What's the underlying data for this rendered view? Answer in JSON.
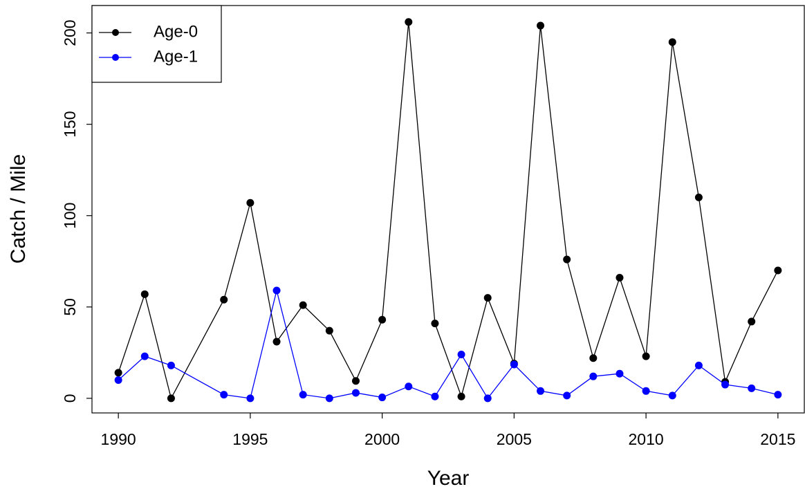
{
  "chart_data": {
    "type": "line",
    "x_label": "Year",
    "y_label": "Catch / Mile",
    "x": [
      1990,
      1991,
      1992,
      1994,
      1995,
      1996,
      1997,
      1998,
      1999,
      2000,
      2001,
      2002,
      2003,
      2004,
      2005,
      2006,
      2007,
      2008,
      2009,
      2010,
      2011,
      2012,
      2013,
      2014,
      2015
    ],
    "series": [
      {
        "name": "Age-0",
        "color": "#000000",
        "values": [
          14,
          57,
          0,
          54,
          107,
          31,
          51,
          37,
          9.5,
          43,
          206,
          41,
          1,
          55,
          19,
          204,
          76,
          22,
          66,
          23,
          195,
          110,
          9,
          42,
          70
        ]
      },
      {
        "name": "Age-1",
        "color": "#0000ff",
        "values": [
          10,
          23,
          18,
          2,
          0,
          59,
          2,
          0,
          3,
          0.5,
          6.5,
          1,
          24,
          0,
          18.5,
          4,
          1.5,
          12,
          13.5,
          4,
          1.5,
          18,
          7.5,
          5.5,
          2
        ]
      }
    ],
    "xlim": [
      1989,
      2016
    ],
    "ylim": [
      -8,
      215
    ],
    "xticks": [
      1990,
      1995,
      2000,
      2005,
      2010,
      2015
    ],
    "yticks": [
      0,
      50,
      100,
      150,
      200
    ],
    "legend": "top-left"
  }
}
